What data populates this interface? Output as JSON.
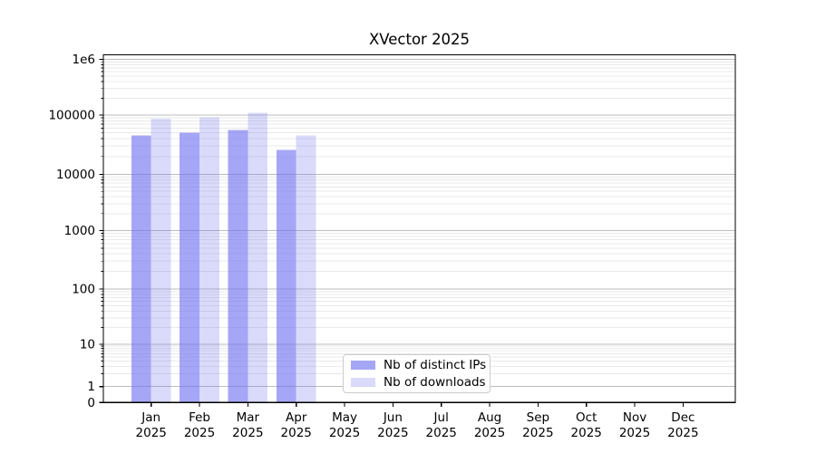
{
  "figure": {
    "background": "#ffffff"
  },
  "chart_data": {
    "type": "bar",
    "title": "XVector 2025",
    "year_label": "2025",
    "months": [
      "Jan",
      "Feb",
      "Mar",
      "Apr",
      "May",
      "Jun",
      "Jul",
      "Aug",
      "Sep",
      "Oct",
      "Nov",
      "Dec"
    ],
    "series": [
      {
        "name": "Nb of distinct IPs",
        "color": "#6a6af0",
        "opacity": 0.6,
        "values": [
          45000,
          50000,
          56000,
          26000,
          0,
          0,
          0,
          0,
          0,
          0,
          0,
          0
        ]
      },
      {
        "name": "Nb of downloads",
        "color": "#6a6af0",
        "opacity": 0.25,
        "values": [
          87000,
          92000,
          110000,
          45000,
          0,
          0,
          0,
          0,
          0,
          0,
          0,
          0
        ]
      }
    ],
    "y_axis": {
      "scale": "symlog",
      "tick_labels": [
        "1e6",
        "100000",
        "10000",
        "1000",
        "100",
        "10",
        "1",
        "0"
      ],
      "tick_values": [
        1000000,
        100000,
        10000,
        1000,
        100,
        10,
        1,
        0
      ],
      "ylim": [
        0,
        1200000
      ]
    },
    "grid": true,
    "legend_position": "bottom-center",
    "colors": {
      "major_gridline": "#bdbdbd",
      "minor_gridline": "#e9e9e9",
      "spine": "#000000"
    }
  }
}
